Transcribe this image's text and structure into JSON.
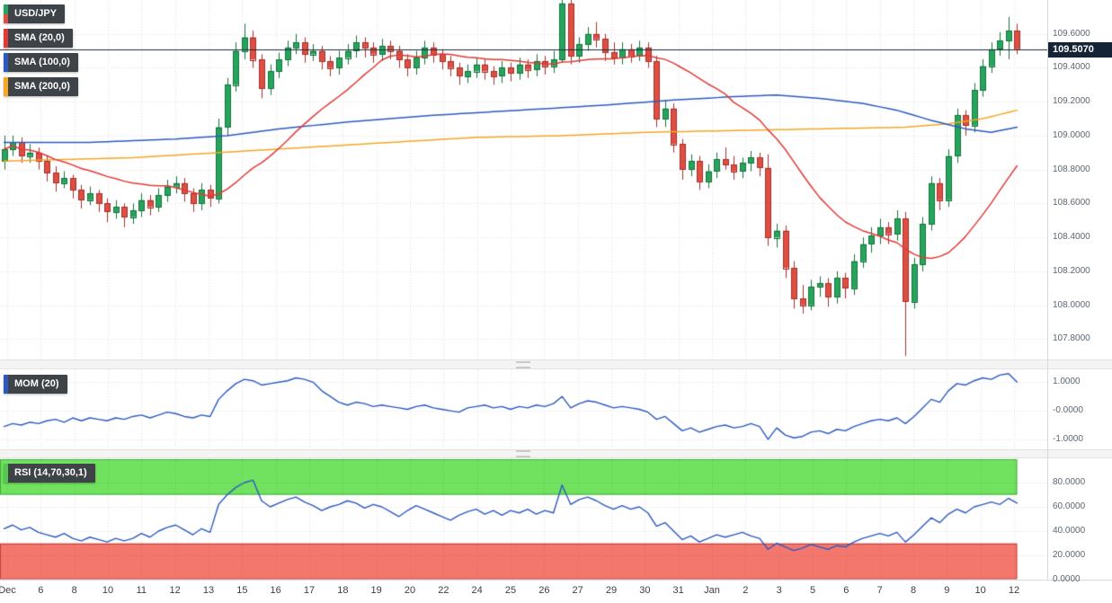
{
  "header": {
    "pair": "USD/JPY"
  },
  "legend": {
    "sma20_label": "SMA (20,0)",
    "sma100_label": "SMA (100,0)",
    "sma200_label": "SMA (200,0)",
    "mom_label": "MOM (20)",
    "rsi_label": "RSI (14,70,30,1)"
  },
  "price_tag": "109.5070",
  "colors": {
    "candle_up": "#26a45c",
    "candle_up_border": "#14713c",
    "candle_down": "#de4e42",
    "candle_down_border": "#a2312a",
    "sma20": "#e03a36",
    "sma100": "#2c59c0",
    "sma200": "#f5a623",
    "indicator_line": "#2c59c0",
    "price_line": "#1c2b3a",
    "price_tag_bg": "#152336",
    "rsi_overbought_fill": "#70e25f",
    "rsi_overbought_border": "#3fae3a",
    "rsi_oversold_fill": "#f4776e",
    "rsi_oversold_border": "#c2443c",
    "rsi_stripe": "#52c84f",
    "chip_bg": "#3e4347"
  },
  "axes": {
    "price_ticks": [
      {
        "label": "109.6000",
        "value": 109.6
      },
      {
        "label": "109.4000",
        "value": 109.4
      },
      {
        "label": "109.2000",
        "value": 109.2
      },
      {
        "label": "109.0000",
        "value": 109.0
      },
      {
        "label": "108.8000",
        "value": 108.8
      },
      {
        "label": "108.6000",
        "value": 108.6
      },
      {
        "label": "108.4000",
        "value": 108.4
      },
      {
        "label": "108.2000",
        "value": 108.2
      },
      {
        "label": "108.0000",
        "value": 108.0
      },
      {
        "label": "107.8000",
        "value": 107.8
      }
    ],
    "mom_ticks": [
      {
        "label": "1.0000",
        "value": 1
      },
      {
        "label": "-0.0000",
        "value": 0
      },
      {
        "label": "-1.0000",
        "value": -1
      }
    ],
    "rsi_ticks": [
      {
        "label": "80.0000",
        "value": 80
      },
      {
        "label": "60.0000",
        "value": 60
      },
      {
        "label": "40.0000",
        "value": 40
      },
      {
        "label": "20.0000",
        "value": 20
      },
      {
        "label": "0.0000",
        "value": 0
      }
    ],
    "x_labels": [
      "Dec",
      "6",
      "8",
      "10",
      "11",
      "12",
      "13",
      "15",
      "16",
      "17",
      "18",
      "19",
      "20",
      "22",
      "24",
      "25",
      "26",
      "27",
      "29",
      "30",
      "31",
      "Jan",
      "2",
      "3",
      "5",
      "6",
      "7",
      "8",
      "9",
      "10",
      "12"
    ]
  },
  "chart_data": {
    "type": "candlestick",
    "instrument": "USD/JPY",
    "current_price": 109.507,
    "price_range": [
      107.68,
      109.8
    ],
    "legend_overlays": [
      "SMA (20,0)",
      "SMA (100,0)",
      "SMA (200,0)"
    ],
    "sub_indicators": [
      "MOM (20)",
      "RSI (14,70,30,1)"
    ],
    "candles": [
      [
        108.85,
        109.0,
        108.8,
        108.92
      ],
      [
        108.92,
        109.0,
        108.88,
        108.96
      ],
      [
        108.96,
        108.99,
        108.84,
        108.88
      ],
      [
        108.88,
        108.95,
        108.84,
        108.9
      ],
      [
        108.9,
        108.93,
        108.8,
        108.85
      ],
      [
        108.85,
        108.88,
        108.73,
        108.78
      ],
      [
        108.78,
        108.82,
        108.67,
        108.72
      ],
      [
        108.72,
        108.79,
        108.69,
        108.75
      ],
      [
        108.75,
        108.77,
        108.63,
        108.68
      ],
      [
        108.68,
        108.71,
        108.57,
        108.62
      ],
      [
        108.62,
        108.7,
        108.59,
        108.66
      ],
      [
        108.66,
        108.68,
        108.55,
        108.6
      ],
      [
        108.6,
        108.63,
        108.49,
        108.55
      ],
      [
        108.55,
        108.62,
        108.51,
        108.58
      ],
      [
        108.58,
        108.6,
        108.46,
        108.52
      ],
      [
        108.52,
        108.6,
        108.48,
        108.56
      ],
      [
        108.56,
        108.66,
        108.52,
        108.62
      ],
      [
        108.62,
        108.65,
        108.53,
        108.58
      ],
      [
        108.58,
        108.69,
        108.55,
        108.65
      ],
      [
        108.65,
        108.74,
        108.61,
        108.7
      ],
      [
        108.7,
        108.76,
        108.66,
        108.72
      ],
      [
        108.72,
        108.75,
        108.61,
        108.66
      ],
      [
        108.66,
        108.69,
        108.55,
        108.6
      ],
      [
        108.6,
        108.72,
        108.56,
        108.68
      ],
      [
        108.68,
        108.71,
        108.58,
        108.63
      ],
      [
        108.63,
        109.1,
        108.6,
        109.05
      ],
      [
        109.05,
        109.34,
        109.0,
        109.3
      ],
      [
        109.3,
        109.55,
        109.26,
        109.5
      ],
      [
        109.5,
        109.66,
        109.45,
        109.58
      ],
      [
        109.58,
        109.62,
        109.4,
        109.45
      ],
      [
        109.45,
        109.48,
        109.22,
        109.28
      ],
      [
        109.28,
        109.42,
        109.24,
        109.38
      ],
      [
        109.38,
        109.49,
        109.34,
        109.45
      ],
      [
        109.45,
        109.56,
        109.41,
        109.52
      ],
      [
        109.52,
        109.6,
        109.48,
        109.55
      ],
      [
        109.55,
        109.58,
        109.43,
        109.48
      ],
      [
        109.48,
        109.54,
        109.44,
        109.5
      ],
      [
        109.5,
        109.53,
        109.39,
        109.44
      ],
      [
        109.44,
        109.47,
        109.35,
        109.4
      ],
      [
        109.4,
        109.5,
        109.36,
        109.46
      ],
      [
        109.46,
        109.54,
        109.42,
        109.5
      ],
      [
        109.5,
        109.59,
        109.46,
        109.55
      ],
      [
        109.55,
        109.58,
        109.46,
        109.52
      ],
      [
        109.52,
        109.55,
        109.43,
        109.48
      ],
      [
        109.48,
        109.57,
        109.44,
        109.53
      ],
      [
        109.53,
        109.56,
        109.45,
        109.5
      ],
      [
        109.5,
        109.53,
        109.4,
        109.45
      ],
      [
        109.45,
        109.48,
        109.35,
        109.4
      ],
      [
        109.4,
        109.5,
        109.36,
        109.46
      ],
      [
        109.46,
        109.56,
        109.42,
        109.52
      ],
      [
        109.52,
        109.55,
        109.43,
        109.48
      ],
      [
        109.48,
        109.51,
        109.39,
        109.44
      ],
      [
        109.44,
        109.47,
        109.35,
        109.4
      ],
      [
        109.4,
        109.43,
        109.3,
        109.35
      ],
      [
        109.35,
        109.42,
        109.31,
        109.38
      ],
      [
        109.38,
        109.46,
        109.34,
        109.42
      ],
      [
        109.42,
        109.45,
        109.33,
        109.38
      ],
      [
        109.38,
        109.41,
        109.3,
        109.35
      ],
      [
        109.35,
        109.44,
        109.31,
        109.4
      ],
      [
        109.4,
        109.43,
        109.32,
        109.37
      ],
      [
        109.37,
        109.46,
        109.33,
        109.42
      ],
      [
        109.42,
        109.45,
        109.34,
        109.39
      ],
      [
        109.39,
        109.48,
        109.35,
        109.44
      ],
      [
        109.44,
        109.47,
        109.36,
        109.41
      ],
      [
        109.41,
        109.5,
        109.37,
        109.45
      ],
      [
        109.45,
        109.82,
        109.43,
        109.78
      ],
      [
        109.78,
        109.8,
        109.42,
        109.47
      ],
      [
        109.47,
        109.58,
        109.43,
        109.54
      ],
      [
        109.54,
        109.64,
        109.5,
        109.6
      ],
      [
        109.6,
        109.67,
        109.52,
        109.57
      ],
      [
        109.57,
        109.6,
        109.44,
        109.49
      ],
      [
        109.49,
        109.55,
        109.42,
        109.46
      ],
      [
        109.46,
        109.55,
        109.42,
        109.51
      ],
      [
        109.51,
        109.54,
        109.43,
        109.47
      ],
      [
        109.47,
        109.56,
        109.44,
        109.52
      ],
      [
        109.52,
        109.55,
        109.4,
        109.44
      ],
      [
        109.44,
        109.47,
        109.05,
        109.1
      ],
      [
        109.1,
        109.21,
        109.05,
        109.16
      ],
      [
        109.16,
        109.19,
        108.9,
        108.95
      ],
      [
        108.95,
        108.98,
        108.74,
        108.8
      ],
      [
        108.8,
        108.89,
        108.76,
        108.85
      ],
      [
        108.85,
        108.88,
        108.68,
        108.73
      ],
      [
        108.73,
        108.83,
        108.69,
        108.79
      ],
      [
        108.79,
        108.9,
        108.75,
        108.86
      ],
      [
        108.86,
        108.93,
        108.8,
        108.83
      ],
      [
        108.83,
        108.88,
        108.74,
        108.79
      ],
      [
        108.79,
        108.87,
        108.75,
        108.84
      ],
      [
        108.84,
        108.91,
        108.79,
        108.87
      ],
      [
        108.87,
        108.9,
        108.76,
        108.81
      ],
      [
        108.81,
        108.89,
        108.35,
        108.4
      ],
      [
        108.4,
        108.48,
        108.34,
        108.44
      ],
      [
        108.44,
        108.47,
        108.16,
        108.22
      ],
      [
        108.22,
        108.26,
        107.98,
        108.04
      ],
      [
        108.04,
        108.12,
        107.95,
        108.0
      ],
      [
        108.0,
        108.15,
        107.97,
        108.11
      ],
      [
        108.11,
        108.17,
        108.05,
        108.13
      ],
      [
        108.13,
        108.16,
        107.99,
        108.05
      ],
      [
        108.05,
        108.2,
        108.01,
        108.16
      ],
      [
        108.16,
        108.19,
        108.04,
        108.1
      ],
      [
        108.1,
        108.3,
        108.06,
        108.26
      ],
      [
        108.26,
        108.4,
        108.22,
        108.36
      ],
      [
        108.36,
        108.46,
        108.31,
        108.41
      ],
      [
        108.41,
        108.51,
        108.36,
        108.46
      ],
      [
        108.46,
        108.49,
        108.36,
        108.42
      ],
      [
        108.42,
        108.56,
        108.38,
        108.51
      ],
      [
        108.51,
        108.55,
        107.7,
        108.02
      ],
      [
        108.02,
        108.28,
        107.98,
        108.24
      ],
      [
        108.24,
        108.52,
        108.2,
        108.48
      ],
      [
        108.48,
        108.76,
        108.44,
        108.72
      ],
      [
        108.72,
        108.75,
        108.56,
        108.62
      ],
      [
        108.62,
        108.92,
        108.58,
        108.88
      ],
      [
        108.88,
        109.16,
        108.84,
        109.12
      ],
      [
        109.12,
        109.15,
        109.0,
        109.06
      ],
      [
        109.06,
        109.31,
        109.02,
        109.27
      ],
      [
        109.27,
        109.45,
        109.23,
        109.41
      ],
      [
        109.41,
        109.55,
        109.37,
        109.51
      ],
      [
        109.51,
        109.61,
        109.47,
        109.56
      ],
      [
        109.56,
        109.7,
        109.45,
        109.62
      ],
      [
        109.62,
        109.66,
        109.48,
        109.51
      ]
    ],
    "sma20_window": 20,
    "sma100_points": [
      [
        0,
        108.96
      ],
      [
        10,
        108.96
      ],
      [
        20,
        108.98
      ],
      [
        26,
        109.0
      ],
      [
        32,
        109.04
      ],
      [
        40,
        109.08
      ],
      [
        50,
        109.12
      ],
      [
        60,
        109.15
      ],
      [
        70,
        109.18
      ],
      [
        78,
        109.21
      ],
      [
        85,
        109.23
      ],
      [
        90,
        109.24
      ],
      [
        95,
        109.22
      ],
      [
        100,
        109.19
      ],
      [
        104,
        109.15
      ],
      [
        108,
        109.09
      ],
      [
        112,
        109.04
      ],
      [
        115,
        109.02
      ],
      [
        118,
        109.05
      ]
    ],
    "sma200_points": [
      [
        0,
        108.85
      ],
      [
        15,
        108.87
      ],
      [
        25,
        108.9
      ],
      [
        35,
        108.93
      ],
      [
        45,
        108.96
      ],
      [
        55,
        108.99
      ],
      [
        65,
        109.0
      ],
      [
        75,
        109.02
      ],
      [
        85,
        109.03
      ],
      [
        95,
        109.04
      ],
      [
        105,
        109.05
      ],
      [
        110,
        109.07
      ],
      [
        114,
        109.1
      ],
      [
        118,
        109.15
      ]
    ],
    "momentum": {
      "range": [
        -1.35,
        1.45
      ],
      "values": [
        -0.55,
        -0.45,
        -0.5,
        -0.4,
        -0.45,
        -0.35,
        -0.3,
        -0.4,
        -0.25,
        -0.35,
        -0.25,
        -0.3,
        -0.35,
        -0.25,
        -0.3,
        -0.2,
        -0.15,
        -0.25,
        -0.15,
        -0.05,
        -0.1,
        -0.2,
        -0.25,
        -0.15,
        -0.2,
        0.4,
        0.7,
        0.95,
        1.1,
        1.05,
        0.9,
        0.95,
        1.0,
        1.05,
        1.15,
        1.1,
        1.0,
        0.7,
        0.5,
        0.3,
        0.2,
        0.3,
        0.25,
        0.15,
        0.2,
        0.15,
        0.1,
        0.05,
        0.15,
        0.2,
        0.1,
        0.05,
        0.0,
        -0.05,
        0.1,
        0.15,
        0.2,
        0.1,
        0.15,
        0.05,
        0.15,
        0.1,
        0.2,
        0.15,
        0.25,
        0.5,
        0.1,
        0.25,
        0.35,
        0.3,
        0.2,
        0.1,
        0.15,
        0.1,
        0.05,
        -0.05,
        -0.3,
        -0.2,
        -0.45,
        -0.7,
        -0.6,
        -0.75,
        -0.65,
        -0.55,
        -0.5,
        -0.6,
        -0.55,
        -0.45,
        -0.55,
        -1.0,
        -0.6,
        -0.85,
        -0.95,
        -0.9,
        -0.75,
        -0.7,
        -0.8,
        -0.65,
        -0.7,
        -0.55,
        -0.45,
        -0.35,
        -0.3,
        -0.35,
        -0.25,
        -0.45,
        -0.2,
        0.1,
        0.4,
        0.3,
        0.7,
        0.95,
        0.9,
        1.05,
        1.15,
        1.1,
        1.25,
        1.3,
        1.0
      ]
    },
    "rsi": {
      "range": [
        0,
        100
      ],
      "overbought": 70,
      "oversold": 30,
      "values": [
        42,
        45,
        41,
        43,
        39,
        37,
        35,
        38,
        34,
        32,
        35,
        33,
        31,
        34,
        32,
        34,
        38,
        35,
        40,
        43,
        45,
        41,
        37,
        42,
        39,
        62,
        70,
        76,
        80,
        82,
        65,
        60,
        63,
        66,
        68,
        64,
        61,
        57,
        60,
        62,
        65,
        63,
        59,
        62,
        60,
        56,
        52,
        57,
        61,
        58,
        55,
        52,
        49,
        53,
        56,
        58,
        54,
        57,
        53,
        57,
        55,
        58,
        54,
        57,
        55,
        78,
        62,
        66,
        68,
        65,
        61,
        58,
        61,
        58,
        60,
        55,
        44,
        47,
        40,
        33,
        36,
        31,
        34,
        37,
        35,
        37,
        39,
        36,
        34,
        25,
        30,
        27,
        24,
        26,
        29,
        27,
        25,
        28,
        27,
        31,
        34,
        36,
        38,
        36,
        39,
        31,
        37,
        44,
        51,
        47,
        54,
        58,
        55,
        60,
        62,
        64,
        62,
        67,
        63
      ]
    }
  }
}
